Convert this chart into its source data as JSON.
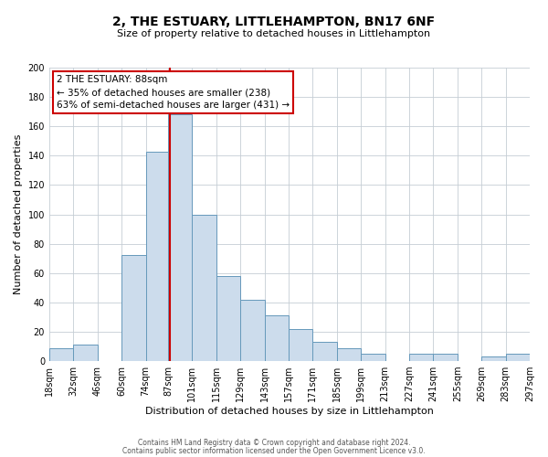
{
  "title": "2, THE ESTUARY, LITTLEHAMPTON, BN17 6NF",
  "subtitle": "Size of property relative to detached houses in Littlehampton",
  "xlabel": "Distribution of detached houses by size in Littlehampton",
  "ylabel": "Number of detached properties",
  "footer_line1": "Contains HM Land Registry data © Crown copyright and database right 2024.",
  "footer_line2": "Contains public sector information licensed under the Open Government Licence v3.0.",
  "annotation_title": "2 THE ESTUARY: 88sqm",
  "annotation_line1": "← 35% of detached houses are smaller (238)",
  "annotation_line2": "63% of semi-detached houses are larger (431) →",
  "bar_color": "#ccdcec",
  "bar_edge_color": "#6699bb",
  "marker_color": "#cc0000",
  "marker_value": 88,
  "bins": [
    18,
    32,
    46,
    60,
    74,
    87,
    101,
    115,
    129,
    143,
    157,
    171,
    185,
    199,
    213,
    227,
    241,
    255,
    269,
    283,
    297
  ],
  "counts": [
    9,
    11,
    0,
    72,
    143,
    168,
    100,
    58,
    42,
    31,
    22,
    13,
    9,
    5,
    0,
    5,
    5,
    0,
    3,
    5
  ],
  "xlim_left": 18,
  "xlim_right": 297,
  "ylim": [
    0,
    200
  ],
  "yticks": [
    0,
    20,
    40,
    60,
    80,
    100,
    120,
    140,
    160,
    180,
    200
  ],
  "background_color": "#ffffff",
  "grid_color": "#c5cdd5",
  "title_fontsize": 10,
  "subtitle_fontsize": 8,
  "axis_label_fontsize": 8,
  "tick_fontsize": 7
}
